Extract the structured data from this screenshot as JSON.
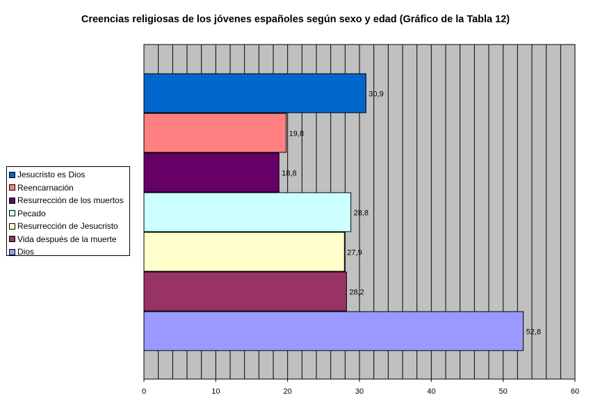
{
  "chart_data": {
    "type": "bar",
    "orientation": "horizontal",
    "title": "Creencias religiosas de los jóvenes españoles según sexo y edad (Gráfico de la Tabla 12)",
    "xlabel": "",
    "ylabel": "",
    "xlim": [
      0,
      60
    ],
    "xticks": [
      "0",
      "10",
      "20",
      "30",
      "40",
      "50",
      "60"
    ],
    "grid": true,
    "legend_position": "left",
    "plot_background": "#c0c0c0",
    "bars_top_to_bottom": [
      {
        "name": "Jesucristo es Dios",
        "value": 30.9,
        "label": "30,9",
        "color": "#0066cc"
      },
      {
        "name": "Reencarnación",
        "value": 19.8,
        "label": "19,8",
        "color": "#ff8080"
      },
      {
        "name": "Resurrección de los muertos",
        "value": 18.8,
        "label": "18,8",
        "color": "#660066"
      },
      {
        "name": "Pecado",
        "value": 28.8,
        "label": "28,8",
        "color": "#ccffff"
      },
      {
        "name": "Resurrección de Jesucristo",
        "value": 27.9,
        "label": "27,9",
        "color": "#ffffcc"
      },
      {
        "name": "Vida después de la muerte",
        "value": 28.2,
        "label": "28,2",
        "color": "#993366"
      },
      {
        "name": "Dios",
        "value": 52.8,
        "label": "52,8",
        "color": "#9999ff"
      }
    ]
  }
}
